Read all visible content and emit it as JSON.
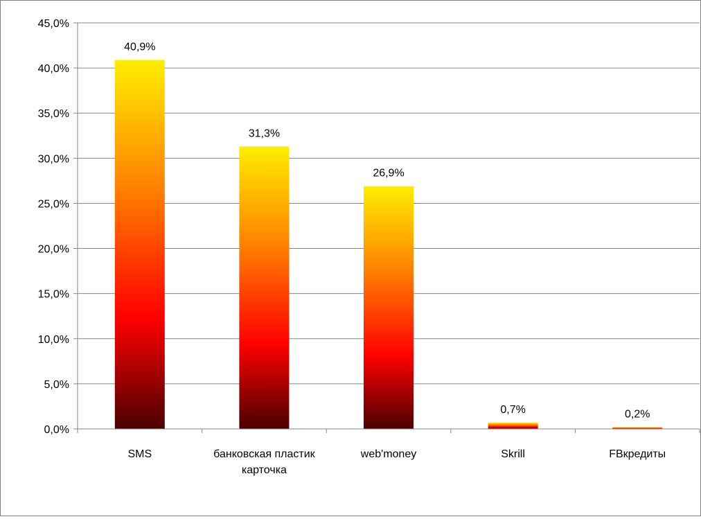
{
  "chart_data": {
    "type": "bar",
    "title": "",
    "xlabel": "",
    "ylabel": "",
    "categories": [
      "SMS",
      "банковская пластик карточка",
      "web'money",
      "Skrill",
      "FBкредиты"
    ],
    "category_lines": [
      [
        "SMS"
      ],
      [
        "банковская пластик",
        "карточка"
      ],
      [
        "web'money"
      ],
      [
        "Skrill"
      ],
      [
        "FBкредиты"
      ]
    ],
    "values": [
      40.9,
      31.3,
      26.9,
      0.7,
      0.2
    ],
    "data_labels": [
      "40,9%",
      "31,3%",
      "26,9%",
      "0,7%",
      "0,2%"
    ],
    "ylim": [
      0,
      45
    ],
    "yticks": [
      0,
      5,
      10,
      15,
      20,
      25,
      30,
      35,
      40,
      45
    ],
    "ytick_labels": [
      "0,0%",
      "5,0%",
      "10,0%",
      "15,0%",
      "20,0%",
      "25,0%",
      "30,0%",
      "35,0%",
      "40,0%",
      "45,0%"
    ],
    "grid": true,
    "legend": "none",
    "colors": {
      "bar_top": "#ffee00",
      "bar_mid_orange": "#ff8000",
      "bar_mid_red": "#ff0000",
      "bar_bottom": "#4a0000",
      "gridline": "#868686"
    }
  }
}
